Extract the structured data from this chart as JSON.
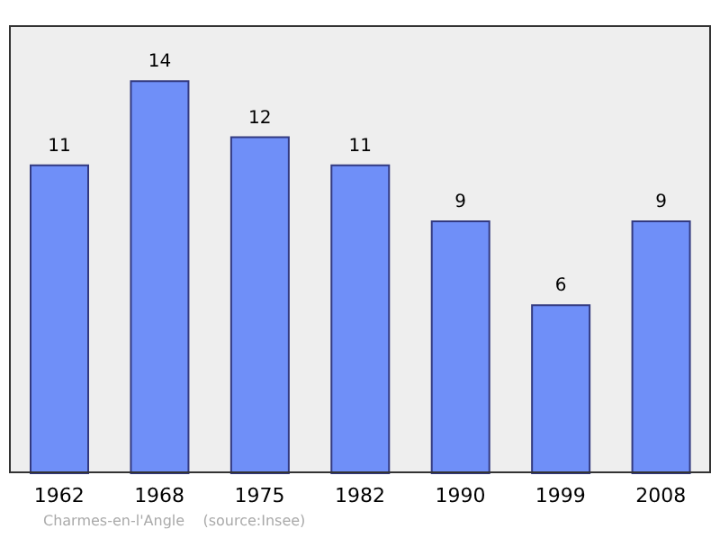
{
  "chart_data": {
    "type": "bar",
    "categories": [
      "1962",
      "1968",
      "1975",
      "1982",
      "1990",
      "1999",
      "2008"
    ],
    "values": [
      11,
      14,
      12,
      11,
      9,
      6,
      9
    ],
    "color": "#6f8ff8",
    "data_labels": true,
    "grid": false,
    "annotations": [
      "Charmes-en-l'Angle    (source:Insee)"
    ]
  }
}
